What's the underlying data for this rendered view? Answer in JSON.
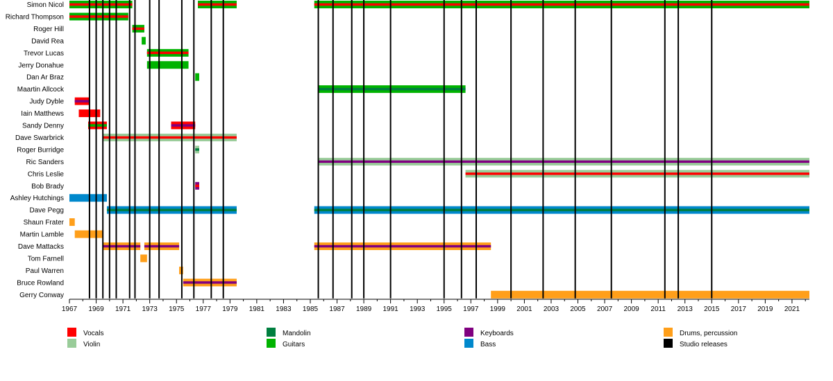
{
  "chart_data": {
    "type": "timeline",
    "title": "",
    "x_axis": {
      "min": 1967,
      "max": 2022.3,
      "tick_start": 1967,
      "tick_end": 2021,
      "tick_step": 2
    },
    "colors": {
      "Vocals": "#ff0000",
      "Violin": "#99cc99",
      "Mandolin": "#007f3f",
      "Guitars": "#00b300",
      "Keyboards": "#800080",
      "Bass": "#0088cc",
      "Drums, percussion": "#ff9f1a",
      "Studio releases": "#000000"
    },
    "legend": [
      "Vocals",
      "Mandolin",
      "Keyboards",
      "Drums, percussion",
      "Violin",
      "Guitars",
      "Bass",
      "Studio releases"
    ],
    "studio_releases": [
      1968.5,
      1969.0,
      1969.5,
      1970.0,
      1970.5,
      1971.5,
      1971.9,
      1973.0,
      1973.7,
      1975.4,
      1976.3,
      1977.6,
      1978.5,
      1985.6,
      1986.7,
      1988.1,
      1989.0,
      1991.0,
      1995.0,
      1996.3,
      1997.4,
      2000.0,
      2002.4,
      2004.8,
      2007.5,
      2011.5,
      2012.5,
      2015.0
    ],
    "members": [
      {
        "name": "Simon Nicol",
        "periods": [
          {
            "start": 1967.0,
            "end": 1971.7,
            "main": "Guitars",
            "stripe": "Vocals"
          },
          {
            "start": 1976.6,
            "end": 1979.5,
            "main": "Guitars",
            "stripe": "Vocals"
          },
          {
            "start": 1985.3,
            "end": 2022.3,
            "main": "Guitars",
            "stripe": "Vocals"
          }
        ]
      },
      {
        "name": "Richard Thompson",
        "periods": [
          {
            "start": 1967.0,
            "end": 1971.4,
            "main": "Guitars",
            "stripe": "Vocals"
          }
        ]
      },
      {
        "name": "Roger Hill",
        "periods": [
          {
            "start": 1971.7,
            "end": 1972.6,
            "main": "Guitars",
            "stripe": "Vocals"
          }
        ]
      },
      {
        "name": "David Rea",
        "periods": [
          {
            "start": 1972.4,
            "end": 1972.7,
            "main": "Guitars",
            "stripe": ""
          }
        ]
      },
      {
        "name": "Trevor Lucas",
        "periods": [
          {
            "start": 1972.8,
            "end": 1975.9,
            "main": "Guitars",
            "stripe": "Vocals"
          }
        ]
      },
      {
        "name": "Jerry Donahue",
        "periods": [
          {
            "start": 1972.8,
            "end": 1975.9,
            "main": "Guitars",
            "stripe": ""
          }
        ]
      },
      {
        "name": "Dan Ar Braz",
        "periods": [
          {
            "start": 1976.4,
            "end": 1976.7,
            "main": "Guitars",
            "stripe": ""
          }
        ]
      },
      {
        "name": "Maartin Allcock",
        "periods": [
          {
            "start": 1985.6,
            "end": 1996.6,
            "main": "Guitars",
            "stripe": "Mandolin"
          }
        ]
      },
      {
        "name": "Judy Dyble",
        "periods": [
          {
            "start": 1967.4,
            "end": 1968.5,
            "main": "Vocals",
            "stripe": "Keyboards"
          }
        ]
      },
      {
        "name": "Iain Matthews",
        "periods": [
          {
            "start": 1967.7,
            "end": 1969.3,
            "main": "Vocals",
            "stripe": ""
          }
        ]
      },
      {
        "name": "Sandy Denny",
        "periods": [
          {
            "start": 1968.4,
            "end": 1969.8,
            "main": "Vocals",
            "stripe": "Guitars"
          },
          {
            "start": 1974.6,
            "end": 1976.4,
            "main": "Vocals",
            "stripe": "Keyboards"
          }
        ]
      },
      {
        "name": "Dave Swarbrick",
        "periods": [
          {
            "start": 1969.5,
            "end": 1979.5,
            "main": "Violin",
            "stripe": "Vocals"
          }
        ]
      },
      {
        "name": "Roger Burridge",
        "periods": [
          {
            "start": 1976.4,
            "end": 1976.7,
            "main": "Violin",
            "stripe": "Mandolin"
          }
        ]
      },
      {
        "name": "Ric Sanders",
        "periods": [
          {
            "start": 1985.6,
            "end": 2022.3,
            "main": "Violin",
            "stripe": "Keyboards"
          }
        ]
      },
      {
        "name": "Chris Leslie",
        "periods": [
          {
            "start": 1996.6,
            "end": 2022.3,
            "main": "Violin",
            "stripe": "Vocals"
          }
        ]
      },
      {
        "name": "Bob Brady",
        "periods": [
          {
            "start": 1976.4,
            "end": 1976.7,
            "main": "Keyboards",
            "stripe": "Vocals"
          }
        ]
      },
      {
        "name": "Ashley Hutchings",
        "periods": [
          {
            "start": 1967.0,
            "end": 1969.8,
            "main": "Bass",
            "stripe": ""
          }
        ]
      },
      {
        "name": "Dave Pegg",
        "periods": [
          {
            "start": 1969.8,
            "end": 1979.5,
            "main": "Bass",
            "stripe": "Mandolin"
          },
          {
            "start": 1985.3,
            "end": 2022.3,
            "main": "Bass",
            "stripe": "Mandolin"
          }
        ]
      },
      {
        "name": "Shaun Frater",
        "periods": [
          {
            "start": 1967.0,
            "end": 1967.4,
            "main": "Drums, percussion",
            "stripe": ""
          }
        ]
      },
      {
        "name": "Martin Lamble",
        "periods": [
          {
            "start": 1967.4,
            "end": 1969.5,
            "main": "Drums, percussion",
            "stripe": ""
          }
        ]
      },
      {
        "name": "Dave Mattacks",
        "periods": [
          {
            "start": 1969.5,
            "end": 1972.3,
            "main": "Drums, percussion",
            "stripe": "Keyboards"
          },
          {
            "start": 1972.6,
            "end": 1975.2,
            "main": "Drums, percussion",
            "stripe": "Keyboards"
          },
          {
            "start": 1985.3,
            "end": 1998.5,
            "main": "Drums, percussion",
            "stripe": "Keyboards"
          }
        ]
      },
      {
        "name": "Tom Farnell",
        "periods": [
          {
            "start": 1972.3,
            "end": 1972.8,
            "main": "Drums, percussion",
            "stripe": ""
          }
        ]
      },
      {
        "name": "Paul Warren",
        "periods": [
          {
            "start": 1975.2,
            "end": 1975.5,
            "main": "Drums, percussion",
            "stripe": ""
          }
        ]
      },
      {
        "name": "Bruce Rowland",
        "periods": [
          {
            "start": 1975.5,
            "end": 1979.5,
            "main": "Drums, percussion",
            "stripe": "Keyboards"
          }
        ]
      },
      {
        "name": "Gerry Conway",
        "periods": [
          {
            "start": 1998.5,
            "end": 2022.3,
            "main": "Drums, percussion",
            "stripe": ""
          }
        ]
      }
    ]
  }
}
